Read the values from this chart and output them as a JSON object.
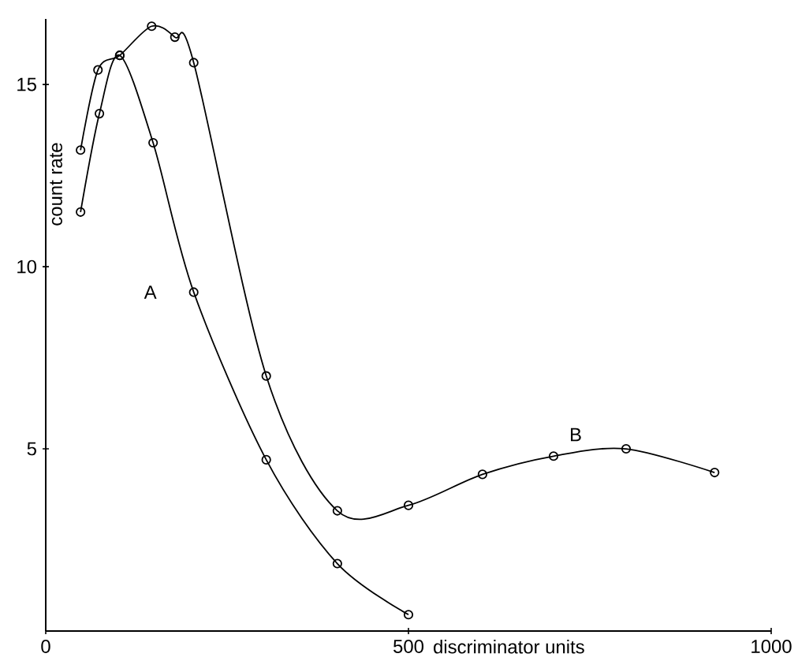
{
  "chart_data": {
    "type": "line",
    "xlabel": "discriminator units",
    "ylabel": "count rate",
    "xlim": [
      0,
      1000
    ],
    "ylim": [
      0,
      16.8
    ],
    "xticks": [
      0,
      500,
      1000
    ],
    "yticks": [
      5,
      10,
      15
    ],
    "marker": "circle",
    "line_style": "solid",
    "grid": false,
    "legend": false,
    "series": [
      {
        "name": "A",
        "color": "#000000",
        "x": [
          48,
          74,
          102,
          148,
          204,
          304,
          402,
          500
        ],
        "values": [
          11.5,
          14.2,
          15.8,
          13.4,
          9.3,
          4.7,
          1.85,
          0.45
        ]
      },
      {
        "name": "B",
        "color": "#000000",
        "x": [
          48,
          72,
          102,
          146,
          178,
          204,
          304,
          402,
          500,
          602,
          700,
          800,
          922
        ],
        "values": [
          13.2,
          15.4,
          15.8,
          16.6,
          16.3,
          15.6,
          7.0,
          3.3,
          3.45,
          4.3,
          4.8,
          5.0,
          4.35
        ]
      }
    ]
  }
}
